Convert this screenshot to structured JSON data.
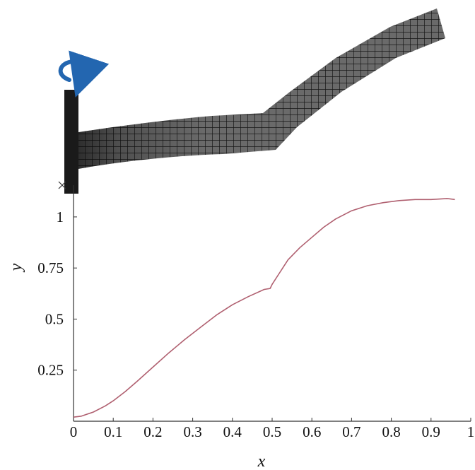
{
  "chart_data": {
    "type": "line",
    "title": "",
    "xlabel": "x",
    "ylabel": "y",
    "xlim": [
      0,
      1
    ],
    "ylim": [
      0,
      1.1
    ],
    "xticks": [
      "0",
      "0.1",
      "0.2",
      "0.3",
      "0.4",
      "0.5",
      "0.6",
      "0.7",
      "0.8",
      "0.9",
      "1"
    ],
    "yticks": [
      "0.25",
      "0.5",
      "0.75",
      "1"
    ],
    "grid": false,
    "legend": "none",
    "series": [
      {
        "color": "#b06070",
        "x": [
          0,
          0.02,
          0.05,
          0.08,
          0.1,
          0.13,
          0.16,
          0.2,
          0.24,
          0.28,
          0.32,
          0.36,
          0.4,
          0.44,
          0.48,
          0.495,
          0.5,
          0.52,
          0.54,
          0.57,
          0.6,
          0.63,
          0.66,
          0.7,
          0.74,
          0.78,
          0.82,
          0.86,
          0.9,
          0.94,
          0.96
        ],
        "y": [
          0.02,
          0.025,
          0.045,
          0.075,
          0.1,
          0.145,
          0.195,
          0.265,
          0.335,
          0.4,
          0.46,
          0.52,
          0.57,
          0.61,
          0.645,
          0.65,
          0.67,
          0.73,
          0.79,
          0.85,
          0.9,
          0.95,
          0.99,
          1.03,
          1.055,
          1.07,
          1.08,
          1.085,
          1.085,
          1.09,
          1.085
        ]
      }
    ]
  },
  "illustration": {
    "beam": "deformed-mesh-beam",
    "rotation_arrow_color": "#2366b0",
    "clamp_color": "#1a1a1a"
  }
}
